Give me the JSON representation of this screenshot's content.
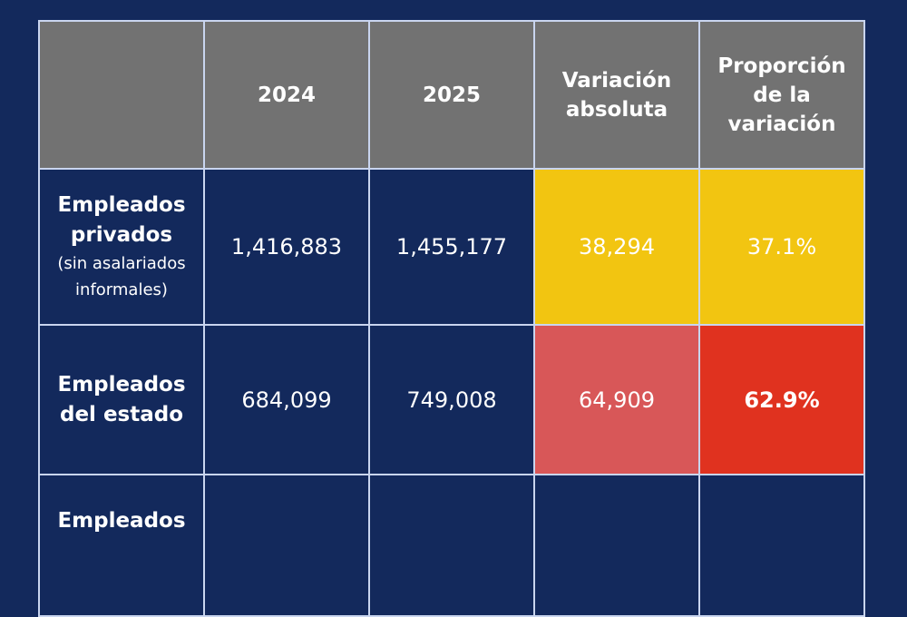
{
  "headers": [
    "",
    "2024",
    "2025",
    "Variación absoluta",
    "Proporción de la variación"
  ],
  "rows": [
    {
      "label": "Empleados privados",
      "sublabel": "(sin asalariados informales)",
      "y2024": "1,416,883",
      "y2025": "1,455,177",
      "abs": "38,294",
      "prop": "37.1%"
    },
    {
      "label": "Empleados del estado",
      "y2024": "684,099",
      "y2025": "749,008",
      "abs": "64,909",
      "prop": "62.9%"
    },
    {
      "label": "Empleados"
    }
  ],
  "colors": {
    "background": "#13295c",
    "header": "#727272",
    "yellow": "#f2c511",
    "pink": "#d85758",
    "red": "#e0321f"
  }
}
